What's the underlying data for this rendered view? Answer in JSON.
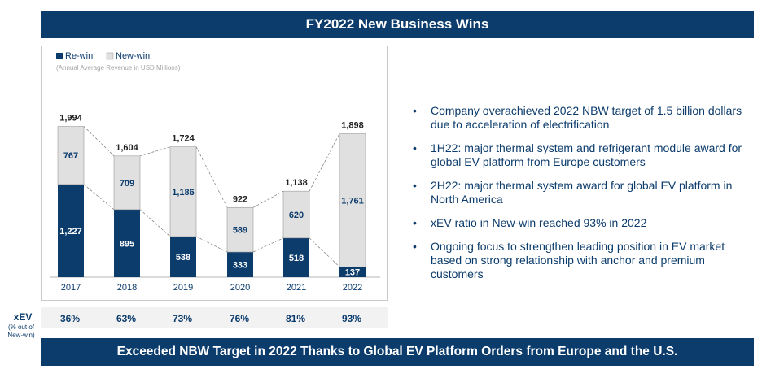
{
  "header": {
    "title": "FY2022 New Business Wins"
  },
  "footer": {
    "banner": "Exceeded NBW Target in 2022 Thanks to Global EV Platform Orders from Europe and the U.S."
  },
  "legend": {
    "rewin": "Re-win",
    "newwin": "New-win"
  },
  "colors": {
    "navy": "#0c3c6c",
    "light": "#e0e0e0"
  },
  "chart_data": {
    "type": "bar",
    "stacked": true,
    "subtitle": "(Annual Average Revenue in USD Millions)",
    "categories": [
      "2017",
      "2018",
      "2019",
      "2020",
      "2021",
      "2022"
    ],
    "series": [
      {
        "name": "Re-win",
        "values": [
          1227,
          895,
          538,
          333,
          518,
          137
        ],
        "color": "#0c3c6c"
      },
      {
        "name": "New-win",
        "values": [
          767,
          709,
          1186,
          589,
          620,
          1761
        ],
        "color": "#e0e0e0"
      }
    ],
    "totals": [
      "1,994",
      "1,604",
      "1,724",
      "922",
      "1,138",
      "1,898"
    ],
    "labels": {
      "rewin": [
        "1,227",
        "895",
        "538",
        "333",
        "518",
        "137"
      ],
      "newwin": [
        "767",
        "709",
        "1,186",
        "589",
        "620",
        "1,761"
      ]
    },
    "ylim": [
      0,
      2000
    ],
    "legend_position": "top-left"
  },
  "xev": {
    "label": "xEV",
    "note": "(% out of New-win)",
    "values": [
      "36%",
      "63%",
      "73%",
      "76%",
      "81%",
      "93%"
    ]
  },
  "bullets": [
    "Company overachieved 2022 NBW target of 1.5 billion dollars due to acceleration of electrification",
    "1H22: major thermal system and refrigerant module award for global EV platform from Europe customers",
    "2H22: major thermal system award for global EV platform in North America",
    "xEV ratio in New-win reached 93% in 2022",
    "Ongoing focus to strengthen leading position in EV market based on strong relationship with anchor and premium customers"
  ]
}
